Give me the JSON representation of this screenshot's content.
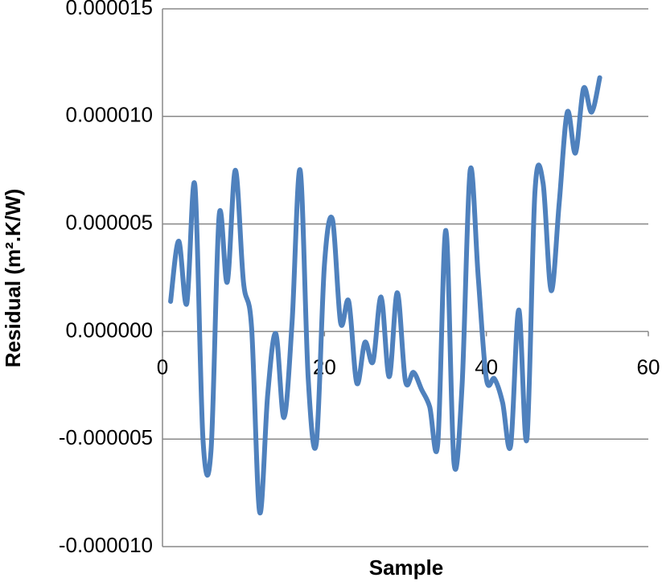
{
  "chart_data": {
    "type": "line",
    "ylabel": "Residual (m².K/W)",
    "xlabel": "Sample",
    "x": [
      1,
      2,
      3,
      4,
      5,
      6,
      7,
      8,
      9,
      10,
      11,
      12,
      13,
      14,
      15,
      16,
      17,
      18,
      19,
      20,
      21,
      22,
      23,
      24,
      25,
      26,
      27,
      28,
      29,
      30,
      31,
      32,
      33,
      34,
      35,
      36,
      37,
      38,
      39,
      40,
      41,
      42,
      43,
      44,
      45,
      46,
      47,
      48,
      49,
      50,
      51,
      52,
      53,
      54
    ],
    "series": [
      {
        "name": "Residual",
        "color": "#4f81bd",
        "values": [
          1.4e-06,
          4.2e-06,
          1.3e-06,
          6.8e-06,
          -5e-06,
          -5.5e-06,
          5.4e-06,
          2.3e-06,
          7.5e-06,
          2.3e-06,
          2e-07,
          -8.4e-06,
          -2.9e-06,
          -1e-07,
          -4e-06,
          4e-07,
          7.5e-06,
          -2.2e-06,
          -5.2e-06,
          3.1e-06,
          5.2e-06,
          4e-07,
          1.4e-06,
          -2.4e-06,
          -5e-07,
          -1.4e-06,
          1.6e-06,
          -2.1e-06,
          1.8e-06,
          -2.3e-06,
          -1.9e-06,
          -2.7e-06,
          -3.5e-06,
          -5.2e-06,
          4.7e-06,
          -6.1e-06,
          -2.5e-06,
          7.5e-06,
          2.5e-06,
          -2.2e-06,
          -2.2e-06,
          -3.3e-06,
          -5.3e-06,
          1e-06,
          -5e-06,
          6.5e-06,
          6.9e-06,
          1.9e-06,
          6e-06,
          1.02e-05,
          8.3e-06,
          1.13e-05,
          1.02e-05,
          1.18e-05
        ]
      }
    ],
    "xlim": [
      0,
      60
    ],
    "xticks": [
      0,
      20,
      40,
      60
    ],
    "ylim": [
      -1e-05,
      1.5e-05
    ],
    "yticks": [
      {
        "value": -1e-05,
        "label": "-0.000010"
      },
      {
        "value": -5e-06,
        "label": "-0.000005"
      },
      {
        "value": 0,
        "label": "0.000000"
      },
      {
        "value": 5e-06,
        "label": "0.000005"
      },
      {
        "value": 1e-05,
        "label": "0.000010"
      },
      {
        "value": 1.5e-05,
        "label": "0.000015"
      }
    ],
    "grid": true
  }
}
